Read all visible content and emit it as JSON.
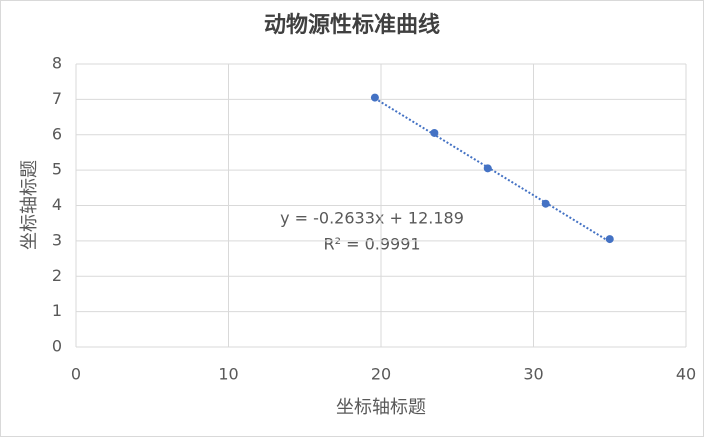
{
  "chart_data": {
    "type": "scatter",
    "title": "动物源性标准曲线",
    "x_label": "坐标轴标题",
    "y_label": "坐标轴标题",
    "series": [
      {
        "color": "#4472c4",
        "x": [
          19.6,
          23.5,
          27.0,
          30.8,
          35.0
        ],
        "values": [
          7.05,
          6.05,
          5.05,
          4.05,
          3.05
        ]
      }
    ],
    "trendline": {
      "slope": -0.2633,
      "intercept": 12.189,
      "equation": "y = -0.2633x + 12.189",
      "r_squared": "R² = 0.9991"
    },
    "xlim": [
      0,
      40
    ],
    "xticks": [
      0,
      10,
      20,
      30,
      40
    ],
    "ylim": [
      0,
      8
    ],
    "yticks": [
      0,
      1,
      2,
      3,
      4,
      5,
      6,
      7,
      8
    ],
    "grid": true
  }
}
